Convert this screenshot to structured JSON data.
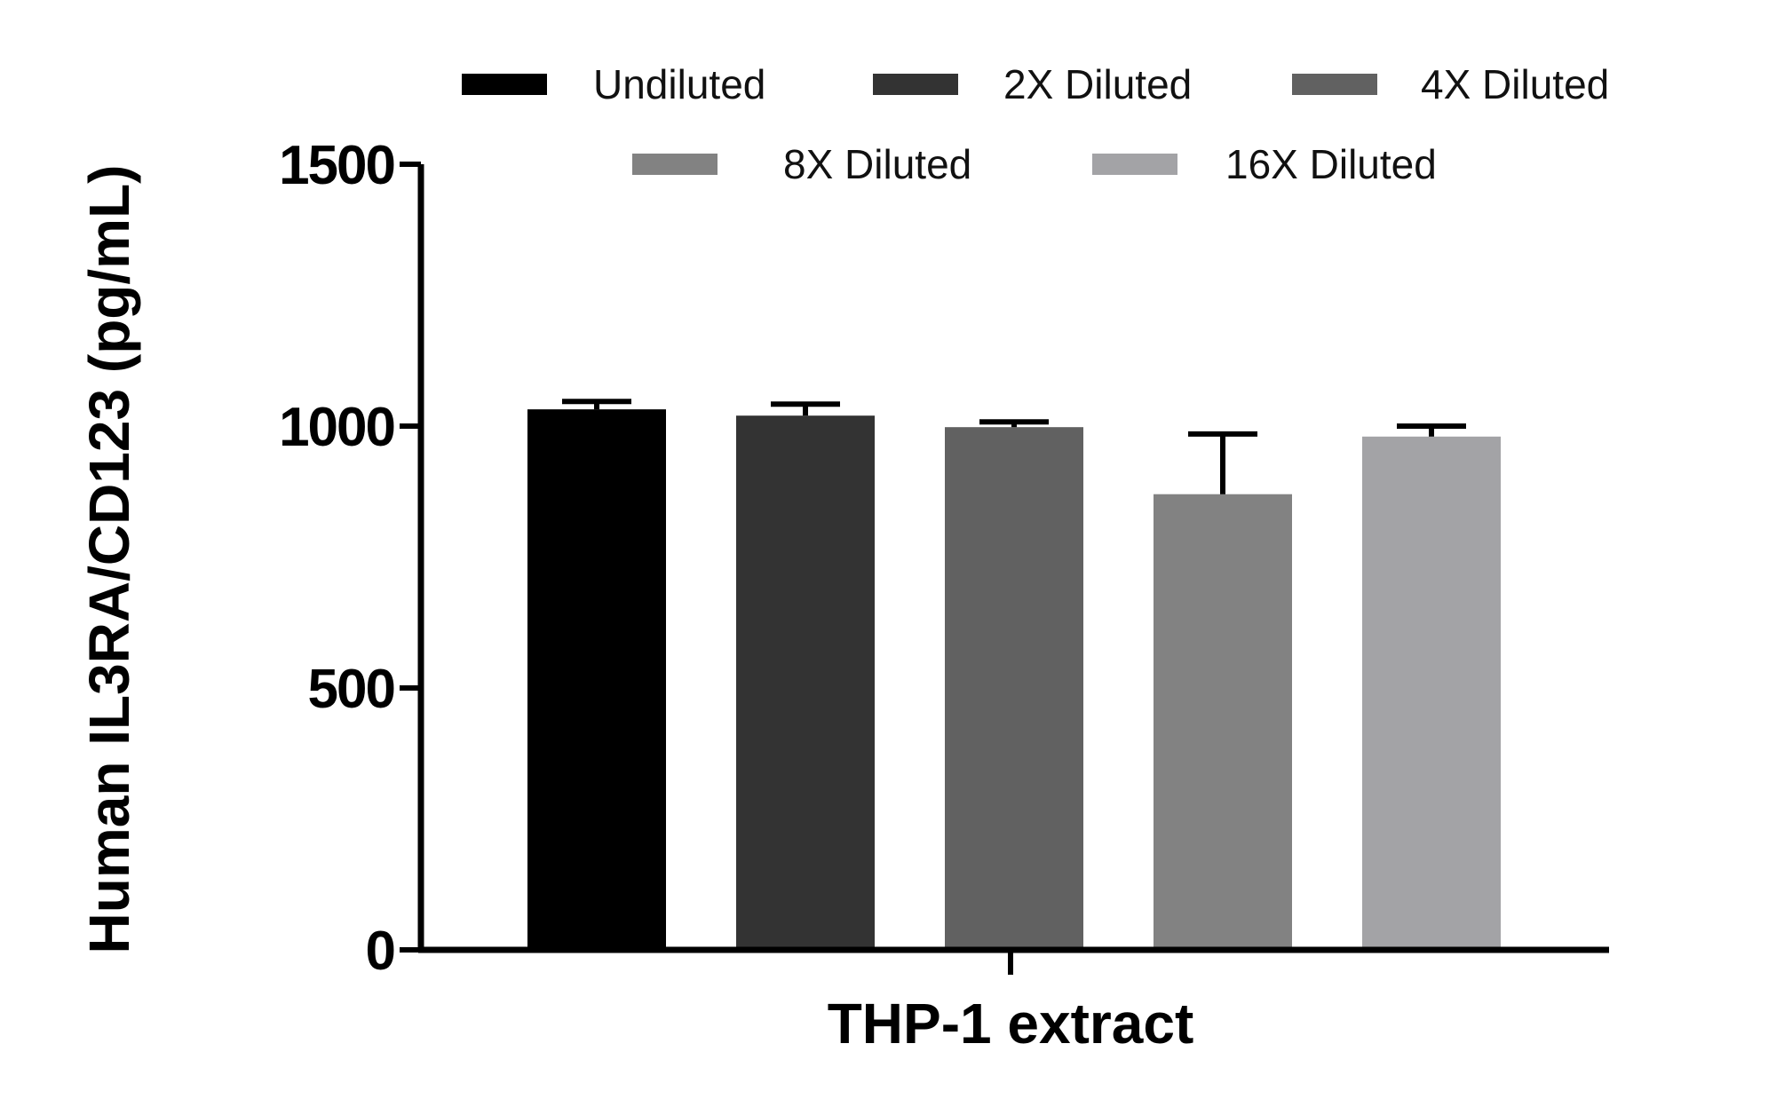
{
  "chart_data": {
    "type": "bar",
    "categories": [
      "THP-1 extract"
    ],
    "series": [
      {
        "name": "Undiluted",
        "value": 1032,
        "error": 15,
        "color": "#000000"
      },
      {
        "name": "2X Diluted",
        "value": 1020,
        "error": 22,
        "color": "#333333"
      },
      {
        "name": "4X Diluted",
        "value": 998,
        "error": 10,
        "color": "#616161"
      },
      {
        "name": "8X Diluted",
        "value": 870,
        "error": 115,
        "color": "#828282"
      },
      {
        "name": "16X Diluted",
        "value": 980,
        "error": 20,
        "color": "#a3a3a6"
      }
    ],
    "xlabel": "THP-1 extract",
    "ylabel": "Human IL3RA/CD123 (pg/mL)",
    "ylim": [
      0,
      1500
    ],
    "yticks": [
      0,
      500,
      1000,
      1500
    ],
    "yticklabels": [
      "0",
      "500",
      "1000",
      "1500"
    ],
    "grid": false,
    "legend_position": "top"
  }
}
